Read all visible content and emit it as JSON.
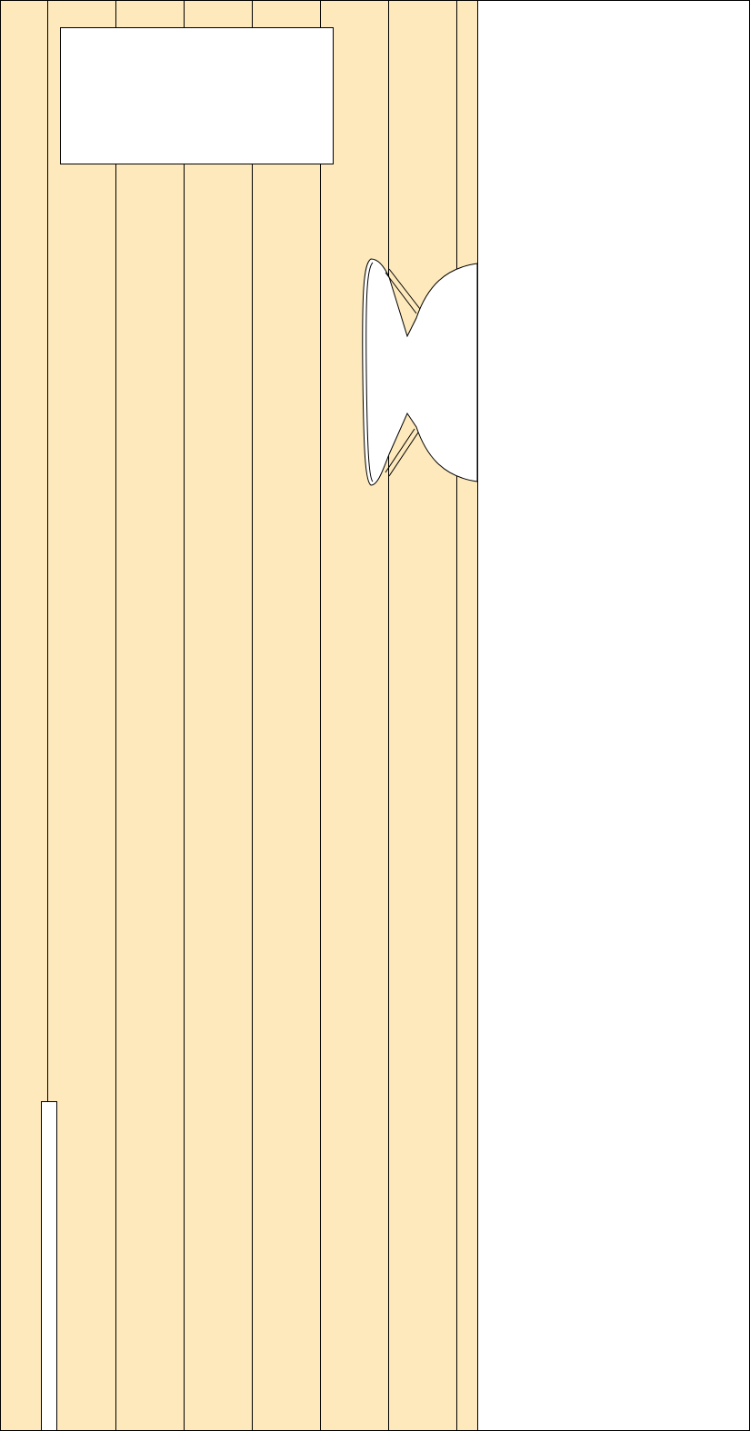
{
  "colors": {
    "panel_fill": "#fde9bc",
    "white": "#ffffff",
    "stroke": "#000000"
  },
  "icons": {
    "bracket": "wall-bracket-icon"
  }
}
